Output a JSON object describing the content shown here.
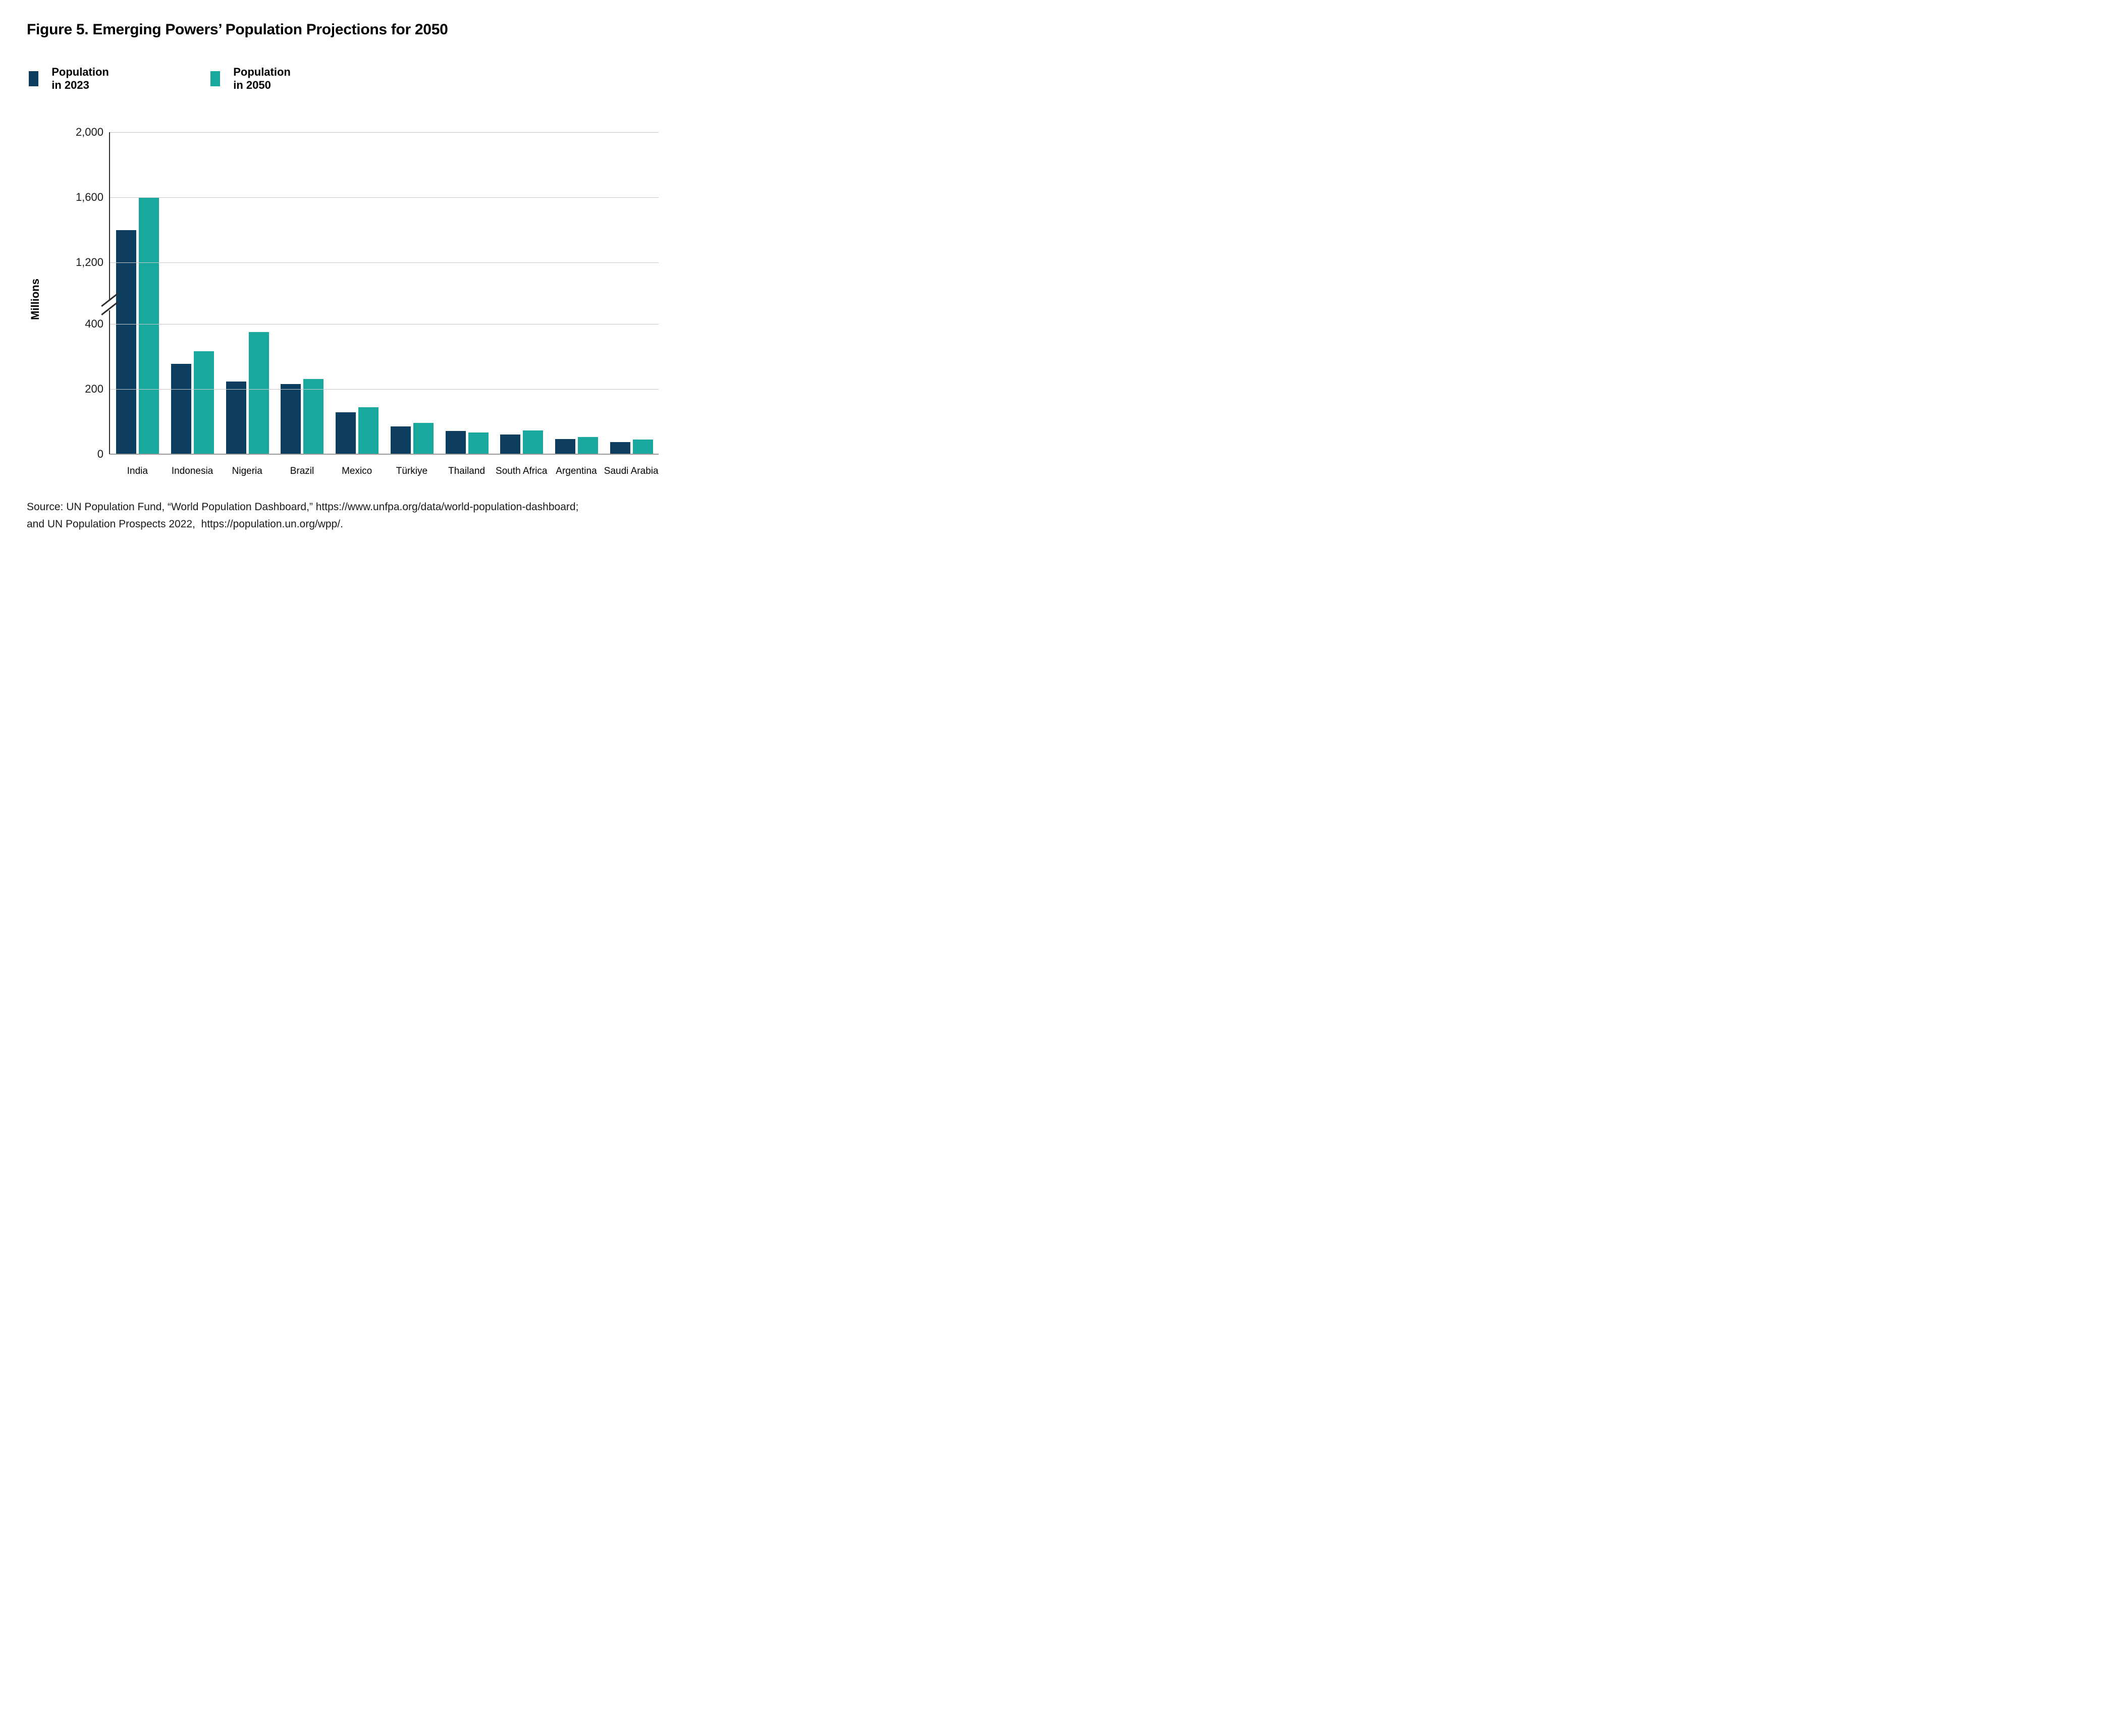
{
  "title": "Figure 5. Emerging Powers’ Population Projections for 2050",
  "legend": {
    "items": [
      {
        "label": "Population in 2023",
        "color": "#0e3e5f"
      },
      {
        "label": "Population in 2050",
        "color": "#18a89e"
      }
    ]
  },
  "chart_data": {
    "type": "bar",
    "title": "Figure 5. Emerging Powers’ Population Projections for 2050",
    "ylabel": "Millions",
    "xlabel": "",
    "grid": true,
    "legend_position": "top",
    "axis_break": {
      "between": [
        400,
        1200
      ]
    },
    "yticks_lower": [
      0,
      200,
      400
    ],
    "yticks_upper": [
      1200,
      1600,
      2000
    ],
    "ylim": [
      0,
      2000
    ],
    "categories": [
      "India",
      "Indonesia",
      "Nigeria",
      "Brazil",
      "Mexico",
      "Türkiye",
      "Thailand",
      "South Africa",
      "Argentina",
      "Saudi Arabia"
    ],
    "series": [
      {
        "name": "Population in 2023",
        "color": "#0e3e5f",
        "values": [
          1400,
          277,
          224,
          216,
          128,
          86,
          72,
          60,
          46,
          37
        ]
      },
      {
        "name": "Population in 2050",
        "color": "#18a89e",
        "values": [
          1600,
          317,
          375,
          231,
          144,
          96,
          66,
          73,
          52,
          45
        ]
      }
    ]
  },
  "source": {
    "line1": "Source: UN Population Fund, “World Population Dashboard,” https://www.unfpa.org/data/world-population-dashboard;",
    "line2": "and UN Population Prospects 2022,  https://population.un.org/wpp/."
  }
}
